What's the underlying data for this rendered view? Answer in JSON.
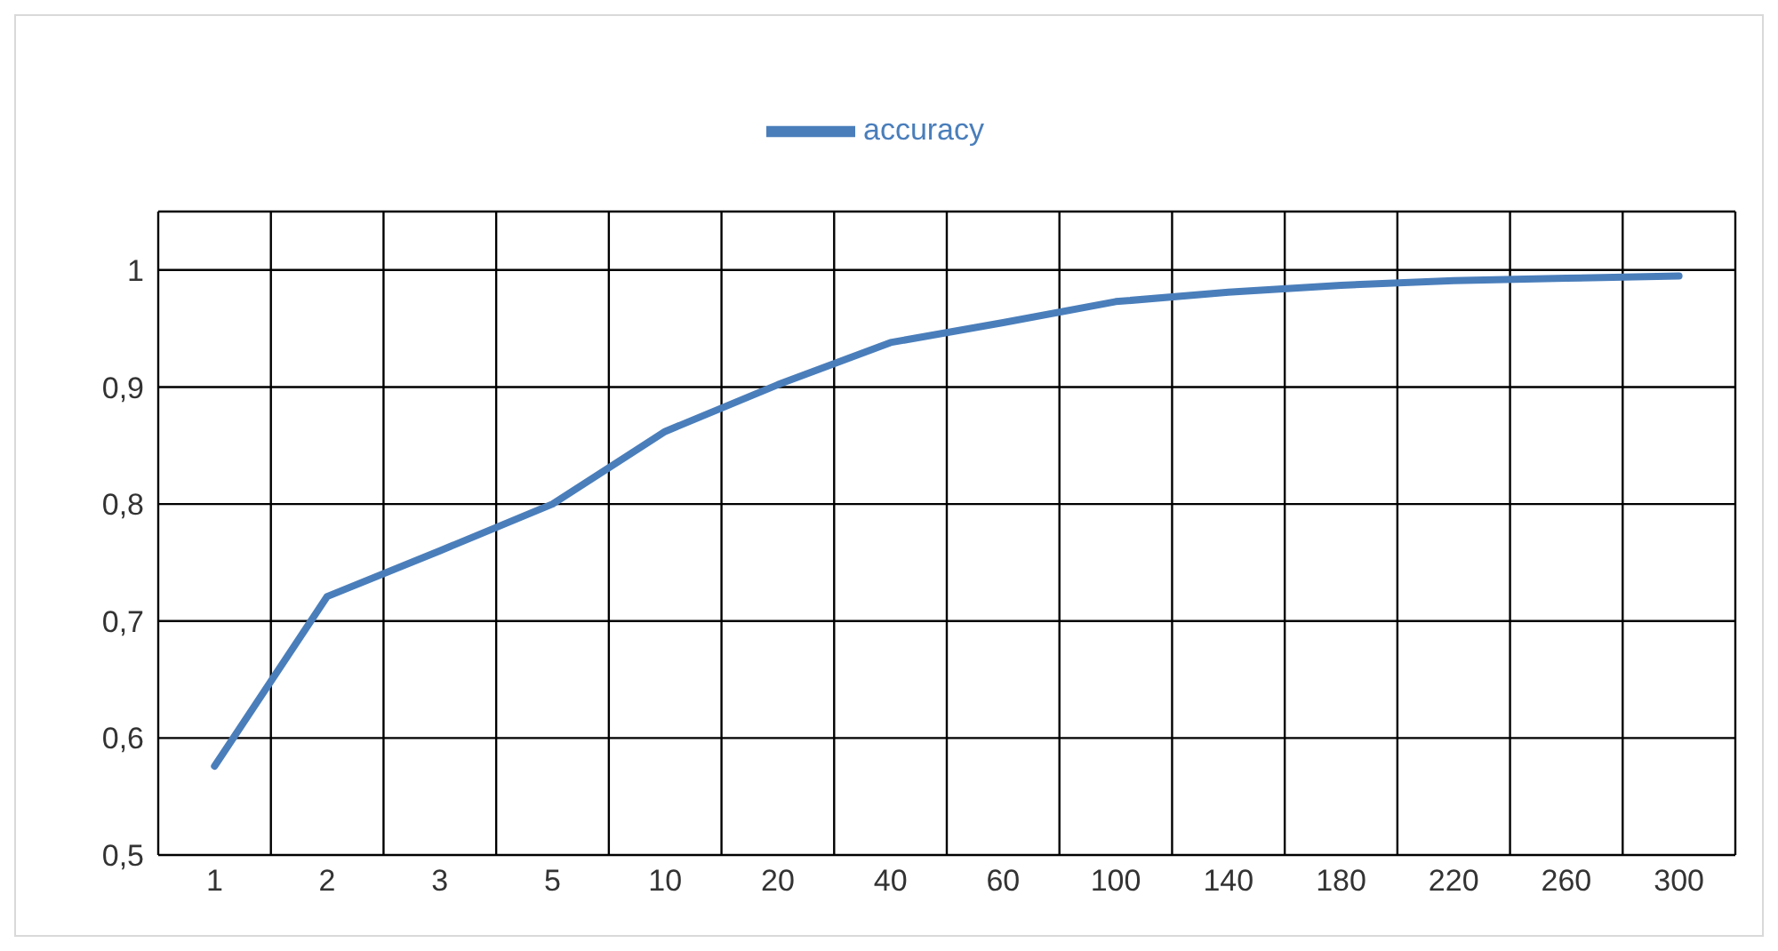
{
  "chart_data": {
    "type": "line",
    "categories": [
      "1",
      "2",
      "3",
      "5",
      "10",
      "20",
      "40",
      "60",
      "100",
      "140",
      "180",
      "220",
      "260",
      "300"
    ],
    "series": [
      {
        "name": "accuracy",
        "color": "#4a7ebb",
        "values": [
          0.576,
          0.721,
          0.76,
          0.8,
          0.862,
          0.902,
          0.938,
          0.955,
          0.973,
          0.981,
          0.987,
          0.991,
          0.993,
          0.995
        ]
      }
    ],
    "ylim": [
      0.5,
      1.05
    ],
    "yticks": [
      {
        "value": 0.5,
        "label": "0,5"
      },
      {
        "value": 0.6,
        "label": "0,6"
      },
      {
        "value": 0.7,
        "label": "0,7"
      },
      {
        "value": 0.8,
        "label": "0,8"
      },
      {
        "value": 0.9,
        "label": "0,9"
      },
      1
    ],
    "grid": true,
    "legend": "top",
    "marker": "none",
    "line_style": "solid"
  }
}
